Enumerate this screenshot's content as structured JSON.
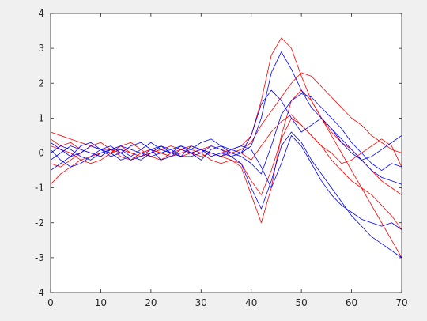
{
  "chart_data": {
    "type": "line",
    "x": [
      0,
      2,
      4,
      6,
      8,
      10,
      12,
      14,
      16,
      18,
      20,
      22,
      24,
      26,
      28,
      30,
      32,
      34,
      36,
      38,
      40,
      42,
      44,
      46,
      48,
      50,
      52,
      54,
      56,
      58,
      60,
      62,
      64,
      66,
      68,
      70
    ],
    "xlim": [
      0,
      70
    ],
    "xticks": [
      0,
      10,
      20,
      30,
      40,
      50,
      60,
      70
    ],
    "ylim": [
      -4,
      4
    ],
    "yticks": [
      -4,
      -3,
      -2,
      -1,
      0,
      1,
      2,
      3,
      4
    ],
    "series": [
      {
        "color": "#ff0000",
        "values": [
          0.6,
          0.5,
          0.4,
          0.3,
          0.2,
          0.1,
          0.1,
          0,
          0,
          -0.1,
          0,
          0.1,
          0,
          -0.1,
          0,
          0.1,
          0,
          0,
          0.1,
          0.2,
          0.5,
          1.5,
          2.8,
          3.3,
          3.0,
          2.2,
          1.5,
          1.0,
          0.6,
          0.3,
          0.1,
          -0.2,
          -0.5,
          -0.8,
          -1.0,
          -1.2
        ]
      },
      {
        "color": "#ff0000",
        "values": [
          -0.9,
          -0.6,
          -0.4,
          -0.2,
          -0.1,
          0,
          0,
          0.1,
          0,
          0,
          0.1,
          0,
          -0.1,
          0,
          0,
          -0.1,
          0,
          -0.1,
          -0.2,
          -0.4,
          -1.2,
          -2.0,
          -1.0,
          0.5,
          1.5,
          1.8,
          1.5,
          1.0,
          0.5,
          0,
          -0.5,
          -1.0,
          -1.5,
          -2.0,
          -2.5,
          -3.0
        ]
      },
      {
        "color": "#ff0000",
        "values": [
          0.2,
          0.1,
          0,
          -0.2,
          -0.3,
          -0.2,
          0,
          0.2,
          0.3,
          0.1,
          -0.1,
          -0.2,
          0,
          0.1,
          0.2,
          0.1,
          0,
          -0.1,
          0,
          0.1,
          0.3,
          0.8,
          1.2,
          1.6,
          2.0,
          2.3,
          2.2,
          1.9,
          1.6,
          1.3,
          1.0,
          0.8,
          0.5,
          0.3,
          0.1,
          0
        ]
      },
      {
        "color": "#ff0000",
        "values": [
          -0.3,
          -0.4,
          -0.2,
          0,
          0.2,
          0.3,
          0.1,
          -0.1,
          -0.2,
          0,
          0.1,
          0,
          -0.1,
          0,
          0.1,
          0,
          -0.2,
          -0.3,
          -0.2,
          -0.3,
          -0.8,
          -1.2,
          -0.5,
          0.4,
          1.0,
          0.8,
          0.5,
          0.2,
          -0.2,
          -0.5,
          -0.8,
          -1.0,
          -1.2,
          -1.5,
          -1.8,
          -2.2
        ]
      },
      {
        "color": "#ff0000",
        "values": [
          0.4,
          0.2,
          0.3,
          0.1,
          0,
          -0.1,
          0.1,
          0.2,
          0,
          -0.1,
          0,
          0.1,
          0.2,
          0.1,
          0,
          0.1,
          0.2,
          0.1,
          0,
          0,
          -0.2,
          0.2,
          0.6,
          0.9,
          1.1,
          0.8,
          0.5,
          0.2,
          0,
          -0.3,
          -0.2,
          0,
          0.2,
          0.4,
          0.2,
          -0.4
        ]
      },
      {
        "color": "#0000ff",
        "values": [
          -0.2,
          0,
          0.2,
          0.1,
          0,
          -0.1,
          0.1,
          0.2,
          0.1,
          0,
          -0.1,
          0,
          0.1,
          0.2,
          0,
          0.1,
          0,
          -0.1,
          0.1,
          0,
          0.2,
          1.0,
          2.3,
          2.9,
          2.4,
          1.8,
          1.3,
          1.0,
          0.7,
          0.4,
          0.1,
          -0.2,
          -0.5,
          -0.7,
          -0.8,
          -0.9
        ]
      },
      {
        "color": "#0000ff",
        "values": [
          0.1,
          -0.2,
          -0.4,
          -0.3,
          -0.1,
          0.1,
          0.2,
          0,
          -0.2,
          -0.1,
          0.1,
          0.2,
          0,
          -0.1,
          0.2,
          0.1,
          -0.1,
          0,
          -0.1,
          -0.3,
          -1.0,
          -1.6,
          -0.8,
          0.2,
          0.6,
          0.3,
          -0.2,
          -0.6,
          -1.0,
          -1.4,
          -1.8,
          -2.1,
          -2.4,
          -2.6,
          -2.8,
          -3.0
        ]
      },
      {
        "color": "#0000ff",
        "values": [
          -0.5,
          -0.3,
          -0.1,
          0.2,
          0.3,
          0.1,
          -0.1,
          0,
          0.2,
          0.3,
          0.1,
          -0.2,
          -0.1,
          0.1,
          0,
          -0.2,
          0.1,
          0.2,
          0,
          -0.1,
          -0.3,
          -0.6,
          0.2,
          1.1,
          1.5,
          1.7,
          1.6,
          1.3,
          1.0,
          0.7,
          0.3,
          0,
          -0.3,
          -0.5,
          -0.3,
          -0.4
        ]
      },
      {
        "color": "#0000ff",
        "values": [
          0.3,
          0.1,
          -0.1,
          0,
          0.2,
          0.1,
          0,
          -0.2,
          -0.1,
          0.1,
          0.3,
          0.1,
          0,
          0.2,
          0.1,
          0.3,
          0.4,
          0.2,
          0.1,
          0.2,
          0.1,
          -0.4,
          -1.0,
          -0.3,
          0.5,
          0.2,
          -0.3,
          -0.8,
          -1.2,
          -1.5,
          -1.7,
          -1.9,
          -2.0,
          -2.1,
          -2.0,
          -2.2
        ]
      },
      {
        "color": "#0000ff",
        "values": [
          0,
          0.2,
          0.1,
          -0.1,
          -0.2,
          0,
          0.1,
          0.1,
          -0.1,
          -0.2,
          0,
          0.2,
          0.1,
          -0.1,
          -0.1,
          0,
          0.2,
          0.1,
          -0.1,
          0,
          0.5,
          1.4,
          1.8,
          1.5,
          1.0,
          0.6,
          0.8,
          1.0,
          0.7,
          0.3,
          0,
          -0.2,
          -0.1,
          0.1,
          0.3,
          0.5
        ]
      }
    ]
  }
}
